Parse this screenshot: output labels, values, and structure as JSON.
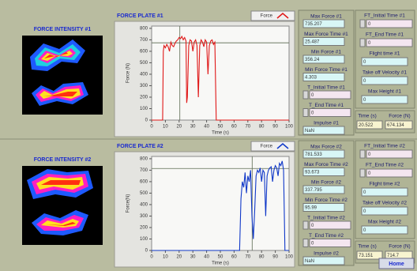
{
  "chart_data": [
    {
      "type": "line",
      "title": "FORCE PLATE #1",
      "x_label": "Time (s)",
      "y_label": "Force (N)",
      "x": [
        0,
        8,
        8.5,
        9,
        10,
        11,
        12,
        13,
        14,
        15,
        16,
        17,
        18,
        19,
        20,
        21,
        22,
        23,
        24,
        25,
        25.5,
        26,
        27,
        28,
        29,
        30,
        31,
        32,
        33,
        34,
        35,
        36,
        37,
        38,
        39,
        40,
        41,
        42,
        43,
        44,
        45,
        46,
        47,
        48,
        100
      ],
      "series": [
        {
          "name": "Force",
          "color": "#e01818",
          "values": [
            0,
            0,
            600,
            650,
            630,
            660,
            640,
            600,
            680,
            650,
            640,
            670,
            690,
            700,
            720,
            710,
            730,
            700,
            720,
            690,
            150,
            200,
            650,
            700,
            690,
            600,
            680,
            700,
            650,
            200,
            650,
            700,
            680,
            640,
            700,
            680,
            400,
            650,
            690,
            700,
            660,
            680,
            0,
            0,
            0
          ]
        }
      ],
      "xlim": [
        0,
        100
      ],
      "ylim": [
        0,
        820
      ],
      "xticks": [
        0,
        10,
        20,
        30,
        40,
        50,
        60,
        70,
        80,
        90,
        100
      ],
      "yticks": [
        0,
        100,
        200,
        300,
        400,
        500,
        600,
        700,
        800
      ]
    },
    {
      "type": "line",
      "title": "FORCE PLATE #2",
      "x_label": "Time (s)",
      "y_label": "Force(N)",
      "x": [
        0,
        64,
        65,
        66,
        67,
        68,
        69,
        70,
        71,
        72,
        73,
        74,
        75,
        76,
        77,
        78,
        79,
        80,
        81,
        82,
        83,
        84,
        85,
        86,
        87,
        88,
        89,
        90,
        91,
        92,
        93,
        94,
        95,
        96,
        97,
        100
      ],
      "series": [
        {
          "name": "Force",
          "color": "#1038c8",
          "values": [
            0,
            0,
            450,
            600,
            550,
            680,
            500,
            650,
            600,
            700,
            300,
            100,
            350,
            650,
            700,
            680,
            720,
            600,
            700,
            680,
            300,
            650,
            700,
            720,
            730,
            600,
            700,
            740,
            720,
            650,
            760,
            740,
            780,
            700,
            0,
            0
          ]
        }
      ],
      "xlim": [
        0,
        100
      ],
      "ylim": [
        0,
        820
      ],
      "xticks": [
        0,
        10,
        20,
        30,
        40,
        50,
        60,
        70,
        80,
        90,
        100
      ],
      "yticks": [
        0,
        100,
        200,
        300,
        400,
        500,
        600,
        700,
        800
      ]
    }
  ],
  "panels": [
    {
      "intensity_title": "FORCE INTENSITY #1",
      "fields": [
        {
          "label": "Max Force #1",
          "value": 735.207
        },
        {
          "label": "Max Force Time #1",
          "value": 25.487
        },
        {
          "label": "Min Force #1",
          "value": 356.24
        },
        {
          "label": "Min Force Time #1",
          "value": 4.303
        },
        {
          "label": "T_Initial Time #1",
          "value": 0
        },
        {
          "label": "T_End Time #1",
          "value": 0
        },
        {
          "label": "Impulse #1",
          "value": "NaN"
        }
      ],
      "flight_fields": [
        {
          "label": "FT_Initial Time #1",
          "value": 0
        },
        {
          "label": "FT_End Time #1",
          "value": 0
        },
        {
          "label": "Flight time #1",
          "value": 0
        },
        {
          "label": "Take off Velocity #1",
          "value": 0
        },
        {
          "label": "Max Height #1",
          "value": 0
        }
      ],
      "cursor": {
        "time_label": "Time (s)",
        "force_label": "Force (N)",
        "time": 20.522,
        "force": 674.134
      }
    },
    {
      "intensity_title": "FORCE INTENSITY #2",
      "fields": [
        {
          "label": "Max Force #2",
          "value": 781.533
        },
        {
          "label": "Max Force Time #2",
          "value": 93.673
        },
        {
          "label": "Min Force #2",
          "value": 337.795
        },
        {
          "label": "Min Force Time #2",
          "value": 95.99
        },
        {
          "label": "T_Initial Time #2",
          "value": 0
        },
        {
          "label": "T_End Time #2",
          "value": 0
        },
        {
          "label": "Impulse #2",
          "value": "NaN"
        }
      ],
      "flight_fields": [
        {
          "label": "FT_Initial Time #2",
          "value": 0
        },
        {
          "label": "FT_End Time #2",
          "value": 0
        },
        {
          "label": "Flight time #2",
          "value": 0
        },
        {
          "label": "Take off Velocity #2",
          "value": 0
        },
        {
          "label": "Max Height #2",
          "value": 0
        }
      ],
      "cursor": {
        "time_label": "Time (s)",
        "force_label": "Force (N)",
        "time": 73.151,
        "force": 714.7
      }
    }
  ],
  "home_button": "Home"
}
